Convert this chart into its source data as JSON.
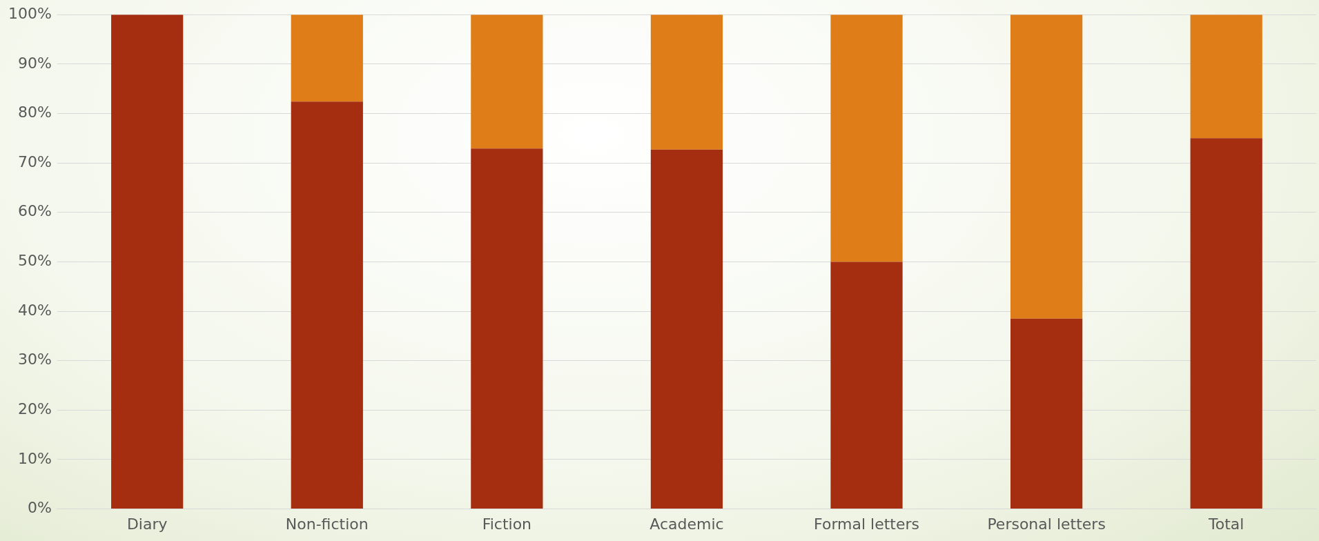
{
  "chart_data": {
    "type": "bar",
    "stacked": true,
    "categories": [
      "Diary",
      "Non-fiction",
      "Fiction",
      "Academic",
      "Formal letters",
      "Personal letters",
      "Total"
    ],
    "series": [
      {
        "color": "#a52d10",
        "values": [
          100,
          82.4,
          72.9,
          72.7,
          50,
          38.5,
          75
        ]
      },
      {
        "color": "#df7d18",
        "values": [
          0,
          17.6,
          27.1,
          27.3,
          50,
          61.5,
          25
        ]
      }
    ],
    "ylim": [
      0,
      100
    ],
    "yticks": [
      {
        "value": 0,
        "label": "0%"
      },
      {
        "value": 10,
        "label": "10%"
      },
      {
        "value": 20,
        "label": "20%"
      },
      {
        "value": 30,
        "label": "30%"
      },
      {
        "value": 40,
        "label": "40%"
      },
      {
        "value": 50,
        "label": "50%"
      },
      {
        "value": 60,
        "label": "60%"
      },
      {
        "value": 70,
        "label": "70%"
      },
      {
        "value": 80,
        "label": "80%"
      },
      {
        "value": 90,
        "label": "90%"
      },
      {
        "value": 100,
        "label": "100%"
      }
    ],
    "grid": "y",
    "legend": false
  }
}
